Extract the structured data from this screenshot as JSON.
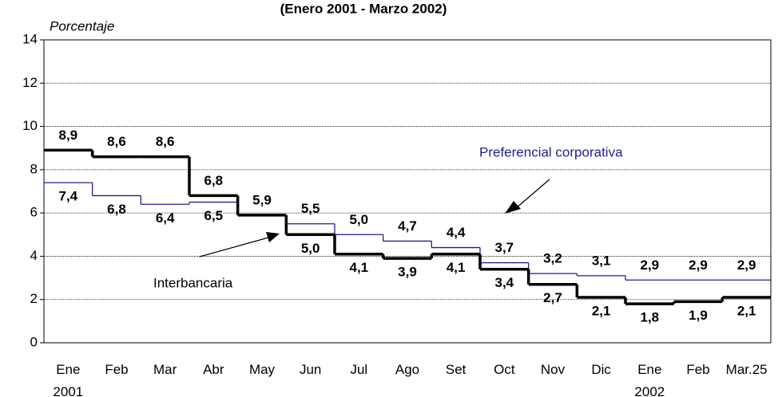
{
  "chart_data": {
    "type": "line",
    "title": "(Enero 2001 - Marzo 2002)",
    "y_label": "Porcentaje",
    "categories": [
      "Ene\n2001",
      "Feb",
      "Mar",
      "Abr",
      "May",
      "Jun",
      "Jul",
      "Ago",
      "Set",
      "Oct",
      "Nov",
      "Dic",
      "Ene\n2002",
      "Feb",
      "Mar.25"
    ],
    "series": [
      {
        "name": "Interbancaria",
        "color": "#000000",
        "values": [
          8.9,
          8.6,
          8.6,
          6.8,
          5.9,
          5.0,
          4.1,
          3.9,
          4.1,
          3.4,
          2.7,
          2.1,
          1.8,
          1.9,
          2.1
        ],
        "value_labels": [
          "8,9",
          "8,6",
          "8,6",
          "6,8",
          "5,9",
          "5,0",
          "4,1",
          "3,9",
          "4,1",
          "3,4",
          "2,7",
          "2,1",
          "1,8",
          "1,9",
          "2,1"
        ]
      },
      {
        "name": "Preferencial corporativa",
        "color": "#1f1f8f",
        "values": [
          7.4,
          6.8,
          6.4,
          6.5,
          5.9,
          5.5,
          5.0,
          4.7,
          4.4,
          3.7,
          3.2,
          3.1,
          2.9,
          2.9,
          2.9
        ],
        "value_labels": [
          "7,4",
          "6,8",
          "6,4",
          "6,5",
          null,
          "5,5",
          "5,0",
          "4,7",
          "4,4",
          "3,7",
          "3,2",
          "3,1",
          "2,9",
          "2,9",
          "2,9"
        ]
      }
    ],
    "ylim": [
      0,
      14
    ],
    "yticks": [
      0,
      2,
      4,
      6,
      8,
      10,
      12,
      14
    ],
    "grid": true
  }
}
